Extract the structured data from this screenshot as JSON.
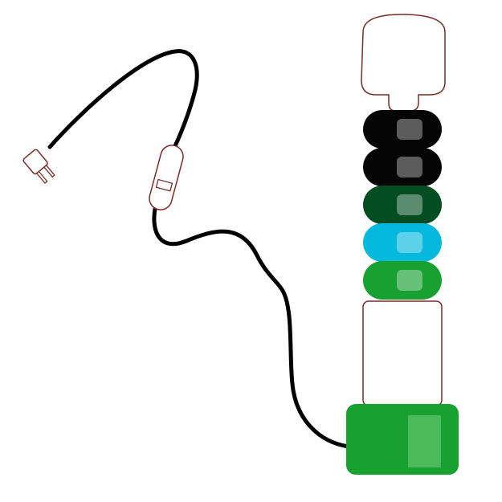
{
  "colors": {
    "background": "#ffffff",
    "cord": "#000000",
    "outline": "#7a2a2a",
    "black_segment": "#050505",
    "dark_green_segment": "#024d22",
    "cyan_segment": "#05b8dd",
    "green_segment": "#18a031",
    "base": "#18a031",
    "base_highlight": "#4cb95a"
  },
  "icons": {
    "plug": "electric-plug-icon",
    "switch": "inline-switch-icon"
  },
  "segments": [
    {
      "name": "black-segment-1",
      "color": "#050505"
    },
    {
      "name": "black-segment-2",
      "color": "#050505"
    },
    {
      "name": "dark-green-segment",
      "color": "#024d22"
    },
    {
      "name": "cyan-segment",
      "color": "#05b8dd"
    },
    {
      "name": "green-segment",
      "color": "#18a031"
    }
  ]
}
